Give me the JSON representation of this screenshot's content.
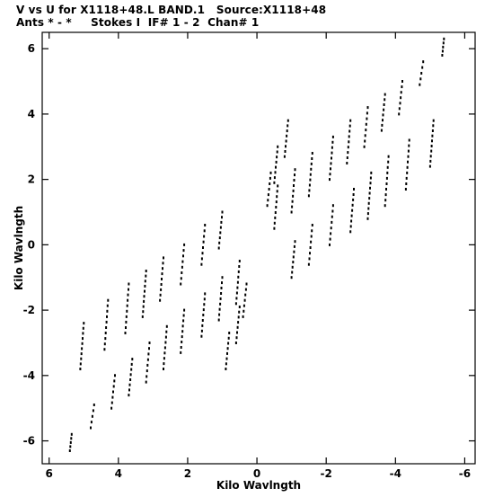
{
  "header": {
    "line1": "V vs U for X1118+48.L BAND.1   Source:X1118+48",
    "line2": "Ants * - *     Stokes I  IF# 1 - 2  Chan# 1"
  },
  "chart_data": {
    "type": "scatter",
    "title": "V vs U for X1118+48.L BAND.1   Source:X1118+48",
    "subtitle": "Ants * - *     Stokes I  IF# 1 - 2  Chan# 1",
    "xlabel": "Kilo Wavlngth",
    "ylabel": "Kilo Wavlngth",
    "xlim": [
      6.2,
      -6.3
    ],
    "ylim": [
      -6.7,
      6.5
    ],
    "x_reversed": true,
    "xticks": [
      6,
      4,
      2,
      0,
      -2,
      -4,
      -6
    ],
    "yticks": [
      6,
      4,
      2,
      0,
      -2,
      -4,
      -6
    ],
    "grid": false,
    "legend": "none",
    "point_color": "#000000",
    "tracks": [
      {
        "x": [
          5.4,
          5.35
        ],
        "y": [
          -6.3,
          -5.8
        ]
      },
      {
        "x": [
          4.8,
          4.7
        ],
        "y": [
          -5.6,
          -4.9
        ]
      },
      {
        "x": [
          4.2,
          4.1
        ],
        "y": [
          -5.0,
          -4.0
        ]
      },
      {
        "x": [
          3.7,
          3.6
        ],
        "y": [
          -4.6,
          -3.5
        ]
      },
      {
        "x": [
          3.2,
          3.1
        ],
        "y": [
          -4.2,
          -3.0
        ]
      },
      {
        "x": [
          2.7,
          2.6
        ],
        "y": [
          -3.8,
          -2.5
        ]
      },
      {
        "x": [
          2.2,
          2.1
        ],
        "y": [
          -3.3,
          -2.0
        ]
      },
      {
        "x": [
          1.6,
          1.5
        ],
        "y": [
          -2.8,
          -1.5
        ]
      },
      {
        "x": [
          1.1,
          1.0
        ],
        "y": [
          -2.3,
          -1.0
        ]
      },
      {
        "x": [
          0.6,
          0.5
        ],
        "y": [
          -1.8,
          -0.5
        ]
      },
      {
        "x": [
          5.1,
          5.0
        ],
        "y": [
          -3.8,
          -2.4
        ]
      },
      {
        "x": [
          4.4,
          4.3
        ],
        "y": [
          -3.2,
          -1.7
        ]
      },
      {
        "x": [
          3.8,
          3.7
        ],
        "y": [
          -2.7,
          -1.2
        ]
      },
      {
        "x": [
          3.3,
          3.2
        ],
        "y": [
          -2.2,
          -0.8
        ]
      },
      {
        "x": [
          2.8,
          2.7
        ],
        "y": [
          -1.7,
          -0.4
        ]
      },
      {
        "x": [
          2.2,
          2.1
        ],
        "y": [
          -1.2,
          0.0
        ]
      },
      {
        "x": [
          1.6,
          1.5
        ],
        "y": [
          -0.6,
          0.6
        ]
      },
      {
        "x": [
          1.1,
          1.0
        ],
        "y": [
          -0.1,
          1.0
        ]
      },
      {
        "x": [
          0.9,
          0.8
        ],
        "y": [
          -3.8,
          -2.7
        ]
      },
      {
        "x": [
          0.6,
          0.5
        ],
        "y": [
          -3.0,
          -1.9
        ]
      },
      {
        "x": [
          0.4,
          0.3
        ],
        "y": [
          -2.2,
          -1.2
        ]
      },
      {
        "x": [
          -5.4,
          -5.35
        ],
        "y": [
          6.3,
          5.8
        ]
      },
      {
        "x": [
          -4.8,
          -4.7
        ],
        "y": [
          5.6,
          4.9
        ]
      },
      {
        "x": [
          -4.2,
          -4.1
        ],
        "y": [
          5.0,
          4.0
        ]
      },
      {
        "x": [
          -3.7,
          -3.6
        ],
        "y": [
          4.6,
          3.5
        ]
      },
      {
        "x": [
          -3.2,
          -3.1
        ],
        "y": [
          4.2,
          3.0
        ]
      },
      {
        "x": [
          -2.7,
          -2.6
        ],
        "y": [
          3.8,
          2.5
        ]
      },
      {
        "x": [
          -2.2,
          -2.1
        ],
        "y": [
          3.3,
          2.0
        ]
      },
      {
        "x": [
          -1.6,
          -1.5
        ],
        "y": [
          2.8,
          1.5
        ]
      },
      {
        "x": [
          -1.1,
          -1.0
        ],
        "y": [
          2.3,
          1.0
        ]
      },
      {
        "x": [
          -0.6,
          -0.5
        ],
        "y": [
          1.8,
          0.5
        ]
      },
      {
        "x": [
          -5.1,
          -5.0
        ],
        "y": [
          3.8,
          2.4
        ]
      },
      {
        "x": [
          -4.4,
          -4.3
        ],
        "y": [
          3.2,
          1.7
        ]
      },
      {
        "x": [
          -3.8,
          -3.7
        ],
        "y": [
          2.7,
          1.2
        ]
      },
      {
        "x": [
          -3.3,
          -3.2
        ],
        "y": [
          2.2,
          0.8
        ]
      },
      {
        "x": [
          -2.8,
          -2.7
        ],
        "y": [
          1.7,
          0.4
        ]
      },
      {
        "x": [
          -2.2,
          -2.1
        ],
        "y": [
          1.2,
          0.0
        ]
      },
      {
        "x": [
          -1.6,
          -1.5
        ],
        "y": [
          0.6,
          -0.6
        ]
      },
      {
        "x": [
          -1.1,
          -1.0
        ],
        "y": [
          0.1,
          -1.0
        ]
      },
      {
        "x": [
          -0.9,
          -0.8
        ],
        "y": [
          3.8,
          2.7
        ]
      },
      {
        "x": [
          -0.6,
          -0.5
        ],
        "y": [
          3.0,
          1.9
        ]
      },
      {
        "x": [
          -0.4,
          -0.3
        ],
        "y": [
          2.2,
          1.2
        ]
      }
    ]
  }
}
